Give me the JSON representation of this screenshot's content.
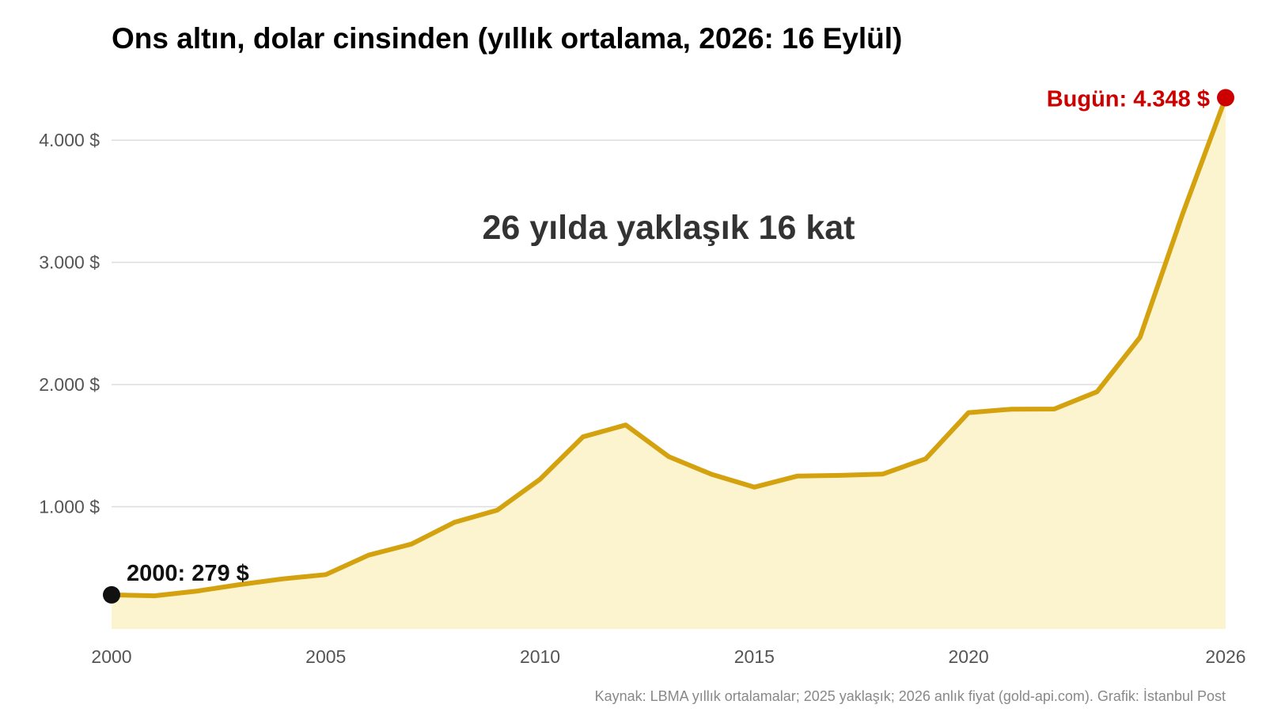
{
  "chart_data": {
    "type": "area",
    "title": "Ons altın, dolar cinsinden (yıllık ortalama, 2026: 16 Eylül)",
    "xlabel": "",
    "ylabel": "",
    "x": [
      2000,
      2001,
      2002,
      2003,
      2004,
      2005,
      2006,
      2007,
      2008,
      2009,
      2010,
      2011,
      2012,
      2013,
      2014,
      2015,
      2016,
      2017,
      2018,
      2019,
      2020,
      2021,
      2022,
      2023,
      2024,
      2025,
      2026
    ],
    "series": [
      {
        "values": [
          279,
          271,
          310,
          363,
          410,
          445,
          604,
          695,
          872,
          972,
          1225,
          1572,
          1669,
          1411,
          1266,
          1160,
          1251,
          1257,
          1268,
          1393,
          1770,
          1799,
          1800,
          1941,
          2386,
          3400,
          4348
        ]
      }
    ],
    "xlim": [
      2000,
      2026
    ],
    "ylim": [
      0,
      4500
    ],
    "yticks": [
      1000,
      2000,
      3000,
      4000
    ],
    "ytick_labels": [
      "1.000 $",
      "2.000 $",
      "3.000 $",
      "4.000 $"
    ],
    "xticks": [
      2000,
      2005,
      2010,
      2015,
      2020,
      2026
    ],
    "xtick_labels": [
      "2000",
      "2005",
      "2010",
      "2015",
      "2020",
      "2026"
    ],
    "grid": true,
    "legend": "none",
    "annotations": {
      "headline": "26 yılda yaklaşık 16 kat",
      "start_label": "2000: 279 $",
      "end_label": "Bugün: 4.348 $"
    },
    "source": "Kaynak: LBMA yıllık ortalamalar; 2025 yaklaşık; 2026 anlık fiyat (gold-api.com). Grafik: İstanbul Post",
    "colors": {
      "line": "#d4a20e",
      "fill": "#fcf3cf",
      "start_point": "#111111",
      "end_point": "#cc0000"
    }
  }
}
